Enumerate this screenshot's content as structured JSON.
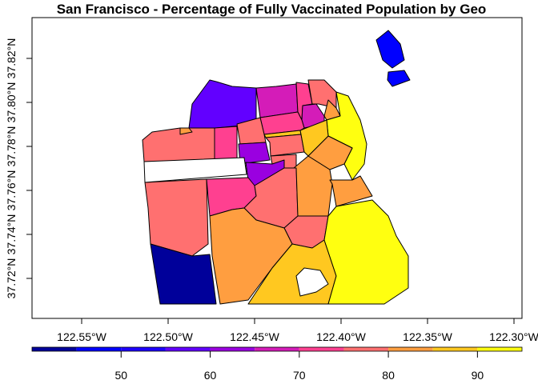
{
  "chart_data": {
    "type": "choropleth",
    "title": "San Francisco - Percentage of Fully Vaccinated Population by Geo",
    "x_axis": {
      "ticks": [
        "122.55°W",
        "122.50°W",
        "122.45°W",
        "122.40°W",
        "122.35°W",
        "122.30°W"
      ],
      "tick_values": [
        -122.55,
        -122.5,
        -122.45,
        -122.4,
        -122.35,
        -122.3
      ]
    },
    "y_axis": {
      "ticks": [
        "37.72°N",
        "37.74°N",
        "37.76°N",
        "37.78°N",
        "37.80°N",
        "37.82°N"
      ],
      "tick_values": [
        37.72,
        37.74,
        37.76,
        37.78,
        37.8,
        37.82
      ]
    },
    "colorbar": {
      "position": "bottom",
      "breaks": [
        40,
        45,
        50,
        55,
        60,
        65,
        70,
        75,
        80,
        85,
        90,
        95
      ],
      "colors": [
        "#00009A",
        "#0000FF",
        "#1E00FF",
        "#6200FF",
        "#9A00E0",
        "#D41CB8",
        "#FF4090",
        "#FF7070",
        "#FF9E40",
        "#FFC820",
        "#FFFF10"
      ],
      "tick_labels": [
        "50",
        "60",
        "70",
        "80",
        "90"
      ],
      "tick_values": [
        50,
        60,
        70,
        80,
        90
      ]
    },
    "regions_pct_vaccinated": [
      57,
      67,
      72,
      67,
      77,
      82,
      92,
      72,
      77,
      82,
      72,
      77,
      62,
      87,
      77,
      77,
      62,
      77,
      72,
      77,
      82,
      82,
      87,
      82,
      77,
      42,
      82,
      87,
      92,
      null,
      null,
      47,
      47
    ]
  }
}
